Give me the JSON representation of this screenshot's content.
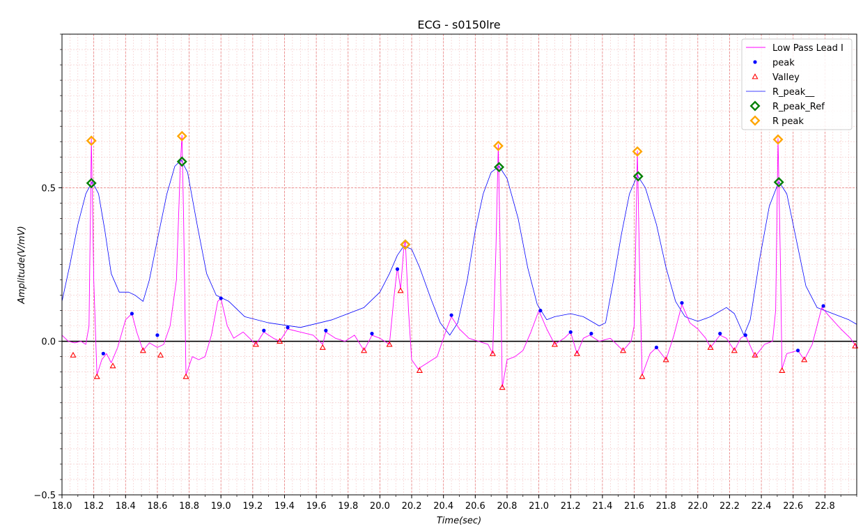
{
  "chart_data": {
    "type": "line",
    "title": "ECG - s0150lre",
    "xlabel": "Time(sec)",
    "ylabel": "Amplitude(V/mV)",
    "xlim": [
      18.0,
      23.0
    ],
    "ylim": [
      -0.5,
      1.0
    ],
    "x_ticks": [
      18.0,
      18.2,
      18.4,
      18.6,
      18.8,
      19.0,
      19.2,
      19.4,
      19.6,
      19.8,
      20.0,
      20.2,
      20.4,
      20.6,
      20.8,
      21.0,
      21.2,
      21.4,
      21.6,
      21.8,
      22.0,
      22.2,
      22.4,
      22.6,
      22.8
    ],
    "x_tick_labels": [
      "18.0",
      "18.2",
      "18.4",
      "18.6",
      "18.8",
      "19.0",
      "19.2",
      "19.4",
      "19.6",
      "19.8",
      "20.0",
      "20.2",
      "20.4",
      "20.6",
      "20.8",
      "21.0",
      "21.2",
      "21.4",
      "21.6",
      "21.8",
      "22.0",
      "22.2",
      "22.4",
      "22.6",
      "22.8"
    ],
    "y_ticks": [
      -0.5,
      0.0,
      0.5
    ],
    "y_tick_labels": [
      "−0.5",
      "0.0",
      "0.5"
    ],
    "grid": true,
    "legend_position": "top-right",
    "colors": {
      "low_pass": "#ff00ff",
      "peak": "#0000ff",
      "valley": "#ff0000",
      "envelope": "#0000ff",
      "r_peak_ref": "#008000",
      "r_peak": "#ffa500",
      "zero_line": "#000000",
      "grid_major": "#e88080",
      "grid_minor": "#f4c4c4"
    },
    "series": [
      {
        "name": "Low Pass Lead I",
        "style": "line",
        "points": [
          [
            18.0,
            0.02
          ],
          [
            18.04,
            0.0
          ],
          [
            18.08,
            -0.005
          ],
          [
            18.12,
            0.0
          ],
          [
            18.15,
            -0.01
          ],
          [
            18.17,
            0.05
          ],
          [
            18.185,
            0.66
          ],
          [
            18.2,
            0.2
          ],
          [
            18.22,
            -0.11
          ],
          [
            18.25,
            -0.06
          ],
          [
            18.28,
            -0.04
          ],
          [
            18.31,
            -0.07
          ],
          [
            18.35,
            -0.02
          ],
          [
            18.4,
            0.07
          ],
          [
            18.44,
            0.09
          ],
          [
            18.47,
            0.03
          ],
          [
            18.51,
            -0.03
          ],
          [
            18.55,
            -0.005
          ],
          [
            18.6,
            -0.02
          ],
          [
            18.64,
            -0.01
          ],
          [
            18.68,
            0.05
          ],
          [
            18.72,
            0.2
          ],
          [
            18.745,
            0.58
          ],
          [
            18.755,
            0.67
          ],
          [
            18.765,
            0.4
          ],
          [
            18.78,
            -0.11
          ],
          [
            18.82,
            -0.05
          ],
          [
            18.86,
            -0.06
          ],
          [
            18.9,
            -0.05
          ],
          [
            18.94,
            0.02
          ],
          [
            18.98,
            0.13
          ],
          [
            19.0,
            0.14
          ],
          [
            19.04,
            0.05
          ],
          [
            19.08,
            0.01
          ],
          [
            19.14,
            0.03
          ],
          [
            19.22,
            -0.01
          ],
          [
            19.27,
            0.03
          ],
          [
            19.33,
            0.01
          ],
          [
            19.37,
            0.0
          ],
          [
            19.42,
            0.04
          ],
          [
            19.5,
            0.03
          ],
          [
            19.58,
            0.02
          ],
          [
            19.64,
            -0.01
          ],
          [
            19.66,
            0.03
          ],
          [
            19.72,
            0.01
          ],
          [
            19.78,
            0.0
          ],
          [
            19.84,
            0.02
          ],
          [
            19.9,
            -0.03
          ],
          [
            19.95,
            0.02
          ],
          [
            20.0,
            0.01
          ],
          [
            20.06,
            -0.01
          ],
          [
            20.09,
            0.15
          ],
          [
            20.11,
            0.24
          ],
          [
            20.13,
            0.17
          ],
          [
            20.15,
            0.3
          ],
          [
            20.16,
            0.33
          ],
          [
            20.18,
            0.1
          ],
          [
            20.2,
            -0.06
          ],
          [
            20.24,
            -0.09
          ],
          [
            20.3,
            -0.07
          ],
          [
            20.36,
            -0.05
          ],
          [
            20.42,
            0.04
          ],
          [
            20.45,
            0.08
          ],
          [
            20.5,
            0.04
          ],
          [
            20.56,
            0.01
          ],
          [
            20.62,
            0.0
          ],
          [
            20.68,
            -0.01
          ],
          [
            20.71,
            -0.04
          ],
          [
            20.73,
            0.3
          ],
          [
            20.745,
            0.64
          ],
          [
            20.755,
            0.35
          ],
          [
            20.77,
            -0.15
          ],
          [
            20.8,
            -0.06
          ],
          [
            20.85,
            -0.05
          ],
          [
            20.9,
            -0.03
          ],
          [
            20.95,
            0.03
          ],
          [
            21.0,
            0.1
          ],
          [
            21.05,
            0.04
          ],
          [
            21.1,
            -0.01
          ],
          [
            21.16,
            0.01
          ],
          [
            21.2,
            0.03
          ],
          [
            21.24,
            -0.04
          ],
          [
            21.28,
            0.01
          ],
          [
            21.32,
            0.02
          ],
          [
            21.38,
            0.0
          ],
          [
            21.45,
            0.01
          ],
          [
            21.53,
            -0.03
          ],
          [
            21.58,
            0.0
          ],
          [
            21.6,
            0.05
          ],
          [
            21.62,
            0.62
          ],
          [
            21.635,
            0.2
          ],
          [
            21.65,
            -0.11
          ],
          [
            21.7,
            -0.04
          ],
          [
            21.74,
            -0.02
          ],
          [
            21.8,
            -0.06
          ],
          [
            21.85,
            0.02
          ],
          [
            21.9,
            0.12
          ],
          [
            21.95,
            0.06
          ],
          [
            22.0,
            0.04
          ],
          [
            22.05,
            0.01
          ],
          [
            22.08,
            -0.02
          ],
          [
            22.14,
            0.02
          ],
          [
            22.18,
            0.01
          ],
          [
            22.23,
            -0.03
          ],
          [
            22.27,
            0.01
          ],
          [
            22.3,
            0.02
          ],
          [
            22.36,
            -0.05
          ],
          [
            22.42,
            -0.01
          ],
          [
            22.47,
            0.0
          ],
          [
            22.49,
            0.1
          ],
          [
            22.505,
            0.66
          ],
          [
            22.52,
            0.25
          ],
          [
            22.53,
            -0.09
          ],
          [
            22.56,
            -0.04
          ],
          [
            22.63,
            -0.03
          ],
          [
            22.67,
            -0.06
          ],
          [
            22.72,
            -0.01
          ],
          [
            22.78,
            0.11
          ],
          [
            22.83,
            0.08
          ],
          [
            22.9,
            0.04
          ],
          [
            22.96,
            0.01
          ],
          [
            23.0,
            -0.02
          ]
        ]
      },
      {
        "name": "peak",
        "style": "marker",
        "points": [
          [
            18.26,
            -0.04
          ],
          [
            18.44,
            0.09
          ],
          [
            18.6,
            0.02
          ],
          [
            19.0,
            0.14
          ],
          [
            19.27,
            0.035
          ],
          [
            19.42,
            0.045
          ],
          [
            19.66,
            0.035
          ],
          [
            19.95,
            0.025
          ],
          [
            20.11,
            0.235
          ],
          [
            20.45,
            0.085
          ],
          [
            21.01,
            0.1
          ],
          [
            21.2,
            0.03
          ],
          [
            21.33,
            0.025
          ],
          [
            21.74,
            -0.02
          ],
          [
            21.9,
            0.125
          ],
          [
            22.14,
            0.025
          ],
          [
            22.3,
            0.02
          ],
          [
            22.63,
            -0.03
          ],
          [
            22.79,
            0.115
          ]
        ]
      },
      {
        "name": "Valley",
        "style": "marker",
        "points": [
          [
            18.07,
            -0.045
          ],
          [
            18.22,
            -0.115
          ],
          [
            18.32,
            -0.08
          ],
          [
            18.51,
            -0.03
          ],
          [
            18.62,
            -0.045
          ],
          [
            18.78,
            -0.115
          ],
          [
            19.22,
            -0.01
          ],
          [
            19.37,
            0.0
          ],
          [
            19.64,
            -0.02
          ],
          [
            19.9,
            -0.03
          ],
          [
            20.06,
            -0.01
          ],
          [
            20.13,
            0.165
          ],
          [
            20.25,
            -0.095
          ],
          [
            20.71,
            -0.04
          ],
          [
            20.77,
            -0.15
          ],
          [
            21.1,
            -0.01
          ],
          [
            21.24,
            -0.04
          ],
          [
            21.53,
            -0.03
          ],
          [
            21.65,
            -0.115
          ],
          [
            21.8,
            -0.06
          ],
          [
            22.08,
            -0.02
          ],
          [
            22.23,
            -0.03
          ],
          [
            22.36,
            -0.045
          ],
          [
            22.53,
            -0.095
          ],
          [
            22.67,
            -0.06
          ],
          [
            22.99,
            -0.015
          ]
        ]
      },
      {
        "name": "R_peak__",
        "style": "line",
        "points": [
          [
            18.0,
            0.13
          ],
          [
            18.05,
            0.25
          ],
          [
            18.1,
            0.38
          ],
          [
            18.15,
            0.48
          ],
          [
            18.19,
            0.52
          ],
          [
            18.23,
            0.48
          ],
          [
            18.27,
            0.36
          ],
          [
            18.31,
            0.22
          ],
          [
            18.36,
            0.16
          ],
          [
            18.42,
            0.16
          ],
          [
            18.46,
            0.15
          ],
          [
            18.51,
            0.13
          ],
          [
            18.55,
            0.2
          ],
          [
            18.6,
            0.33
          ],
          [
            18.66,
            0.48
          ],
          [
            18.71,
            0.57
          ],
          [
            18.75,
            0.59
          ],
          [
            18.79,
            0.55
          ],
          [
            18.85,
            0.38
          ],
          [
            18.91,
            0.22
          ],
          [
            18.97,
            0.15
          ],
          [
            19.05,
            0.13
          ],
          [
            19.15,
            0.08
          ],
          [
            19.3,
            0.06
          ],
          [
            19.5,
            0.045
          ],
          [
            19.7,
            0.07
          ],
          [
            19.9,
            0.11
          ],
          [
            20.0,
            0.16
          ],
          [
            20.06,
            0.22
          ],
          [
            20.11,
            0.28
          ],
          [
            20.15,
            0.31
          ],
          [
            20.2,
            0.3
          ],
          [
            20.25,
            0.24
          ],
          [
            20.32,
            0.14
          ],
          [
            20.38,
            0.06
          ],
          [
            20.44,
            0.02
          ],
          [
            20.49,
            0.06
          ],
          [
            20.55,
            0.2
          ],
          [
            20.6,
            0.36
          ],
          [
            20.65,
            0.48
          ],
          [
            20.7,
            0.55
          ],
          [
            20.75,
            0.57
          ],
          [
            20.8,
            0.53
          ],
          [
            20.87,
            0.4
          ],
          [
            20.93,
            0.24
          ],
          [
            20.99,
            0.12
          ],
          [
            21.05,
            0.07
          ],
          [
            21.1,
            0.08
          ],
          [
            21.2,
            0.09
          ],
          [
            21.28,
            0.08
          ],
          [
            21.38,
            0.05
          ],
          [
            21.42,
            0.06
          ],
          [
            21.47,
            0.2
          ],
          [
            21.52,
            0.35
          ],
          [
            21.57,
            0.48
          ],
          [
            21.62,
            0.54
          ],
          [
            21.67,
            0.5
          ],
          [
            21.74,
            0.38
          ],
          [
            21.8,
            0.24
          ],
          [
            21.86,
            0.13
          ],
          [
            21.92,
            0.08
          ],
          [
            22.0,
            0.065
          ],
          [
            22.08,
            0.08
          ],
          [
            22.18,
            0.11
          ],
          [
            22.23,
            0.09
          ],
          [
            22.29,
            0.02
          ],
          [
            22.33,
            0.07
          ],
          [
            22.39,
            0.27
          ],
          [
            22.45,
            0.44
          ],
          [
            22.51,
            0.52
          ],
          [
            22.56,
            0.48
          ],
          [
            22.62,
            0.33
          ],
          [
            22.68,
            0.18
          ],
          [
            22.75,
            0.11
          ],
          [
            22.85,
            0.09
          ],
          [
            22.95,
            0.07
          ],
          [
            23.0,
            0.055
          ]
        ]
      },
      {
        "name": "R_peak_Ref",
        "style": "marker",
        "points": [
          [
            18.185,
            0.515
          ],
          [
            18.755,
            0.585
          ],
          [
            20.16,
            0.315
          ],
          [
            20.75,
            0.567
          ],
          [
            21.625,
            0.537
          ],
          [
            22.51,
            0.518
          ]
        ]
      },
      {
        "name": "R peak",
        "style": "marker",
        "points": [
          [
            18.185,
            0.653
          ],
          [
            18.755,
            0.668
          ],
          [
            20.16,
            0.315
          ],
          [
            20.745,
            0.636
          ],
          [
            21.62,
            0.618
          ],
          [
            22.505,
            0.657
          ]
        ]
      }
    ]
  }
}
